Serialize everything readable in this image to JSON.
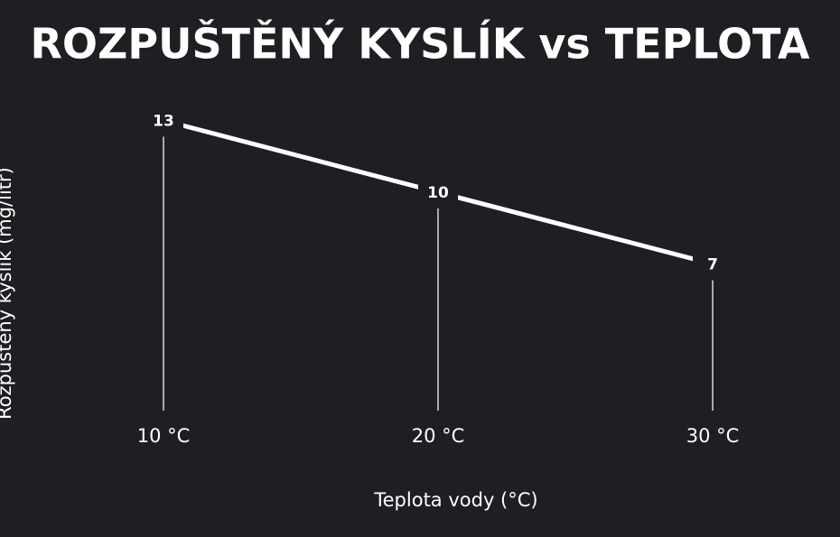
{
  "chart_data": {
    "type": "line",
    "title": "ROZPUŠTĚNÝ KYSLÍK vs TEPLOTA",
    "x_label": "Teplota vody (°C)",
    "y_label": "Rozpuštěný kyslík (mg/litr)",
    "categories": [
      "10 °C",
      "20 °C",
      "30 °C"
    ],
    "values": [
      13,
      10,
      7
    ],
    "color": "#ffffff",
    "ylim": [
      0,
      14
    ]
  }
}
